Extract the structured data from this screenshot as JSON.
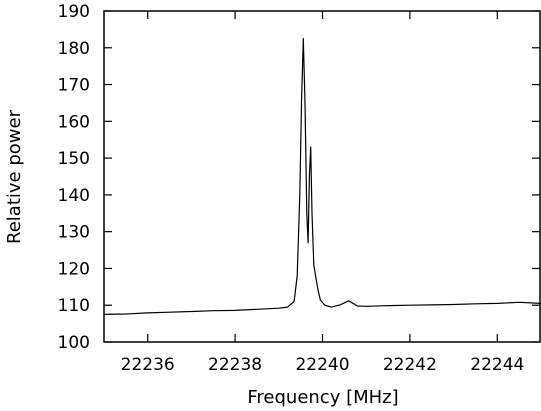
{
  "chart_data": {
    "type": "line",
    "title": "",
    "xlabel": "Frequency [MHz]",
    "ylabel": "Relative power",
    "xlim": [
      22235,
      22245
    ],
    "ylim": [
      100,
      190
    ],
    "x_ticks": [
      22236,
      22238,
      22240,
      22242,
      22244
    ],
    "y_ticks": [
      100,
      110,
      120,
      130,
      140,
      150,
      160,
      170,
      180,
      190
    ],
    "x_tick_labels": [
      "22236",
      "22238",
      "22240",
      "22242",
      "22244"
    ],
    "y_tick_labels": [
      "100",
      "110",
      "120",
      "130",
      "140",
      "150",
      "160",
      "170",
      "180",
      "190"
    ],
    "grid": false,
    "legend": "none",
    "line_color": "#000000",
    "series": [
      {
        "x": [
          22235.0,
          22235.5,
          22236.0,
          22236.5,
          22237.0,
          22237.5,
          22238.0,
          22238.5,
          22239.0,
          22239.2,
          22239.35,
          22239.42,
          22239.48,
          22239.52,
          22239.56,
          22239.6,
          22239.64,
          22239.67,
          22239.7,
          22239.73,
          22239.76,
          22239.8,
          22239.85,
          22239.9,
          22239.95,
          22240.05,
          22240.2,
          22240.4,
          22240.6,
          22240.8,
          22241.0,
          22241.5,
          22242.0,
          22242.5,
          22243.0,
          22243.5,
          22244.0,
          22244.5,
          22245.0
        ],
        "values": [
          107.5,
          107.6,
          107.9,
          108.1,
          108.3,
          108.5,
          108.6,
          108.9,
          109.2,
          109.5,
          111.0,
          118.0,
          140.0,
          165.0,
          182.5,
          165.0,
          135.0,
          127.0,
          145.0,
          153.0,
          135.0,
          121.0,
          117.5,
          114.0,
          111.5,
          110.0,
          109.5,
          110.1,
          111.2,
          109.8,
          109.7,
          109.9,
          110.0,
          110.1,
          110.2,
          110.4,
          110.5,
          110.8,
          110.5
        ]
      }
    ]
  }
}
